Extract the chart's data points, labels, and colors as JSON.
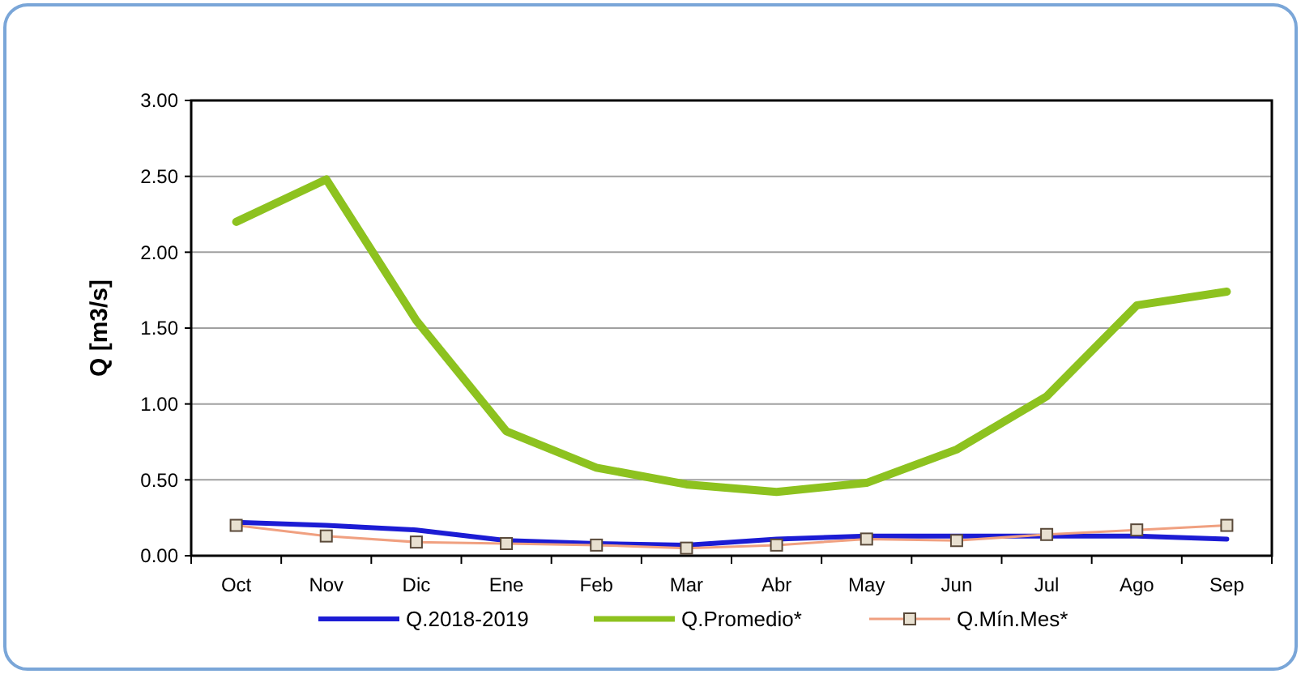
{
  "chart_data": {
    "type": "line",
    "ylabel": "Q [m3/s]",
    "categories": [
      "Oct",
      "Nov",
      "Dic",
      "Ene",
      "Feb",
      "Mar",
      "Abr",
      "May",
      "Jun",
      "Jul",
      "Ago",
      "Sep"
    ],
    "series": [
      {
        "name": "Q.2018-2019",
        "color": "#1c1cd4",
        "marker": "none",
        "values": [
          0.22,
          0.2,
          0.17,
          0.1,
          0.08,
          0.07,
          0.11,
          0.13,
          0.13,
          0.13,
          0.13,
          0.11
        ]
      },
      {
        "name": "Q.Promedio*",
        "color": "#8dc21f",
        "marker": "none",
        "values": [
          2.2,
          2.48,
          1.55,
          0.82,
          0.58,
          0.47,
          0.42,
          0.48,
          0.7,
          1.05,
          1.65,
          1.74
        ]
      },
      {
        "name": "Q.Mín.Mes*",
        "color": "#f0a080",
        "marker": "square",
        "values": [
          0.2,
          0.13,
          0.09,
          0.08,
          0.07,
          0.05,
          0.07,
          0.11,
          0.1,
          0.14,
          0.17,
          0.2
        ]
      }
    ],
    "ylim": [
      0,
      3
    ],
    "yticks": [
      {
        "value": 0,
        "label": "0.00"
      },
      {
        "value": 0.5,
        "label": "0.50"
      },
      {
        "value": 1,
        "label": "1.00"
      },
      {
        "value": 1.5,
        "label": "1.50"
      },
      {
        "value": 2,
        "label": "2.00"
      },
      {
        "value": 2.5,
        "label": "2.50"
      },
      {
        "value": 3,
        "label": "3.00"
      }
    ],
    "grid": "y",
    "legend": "bottom"
  }
}
